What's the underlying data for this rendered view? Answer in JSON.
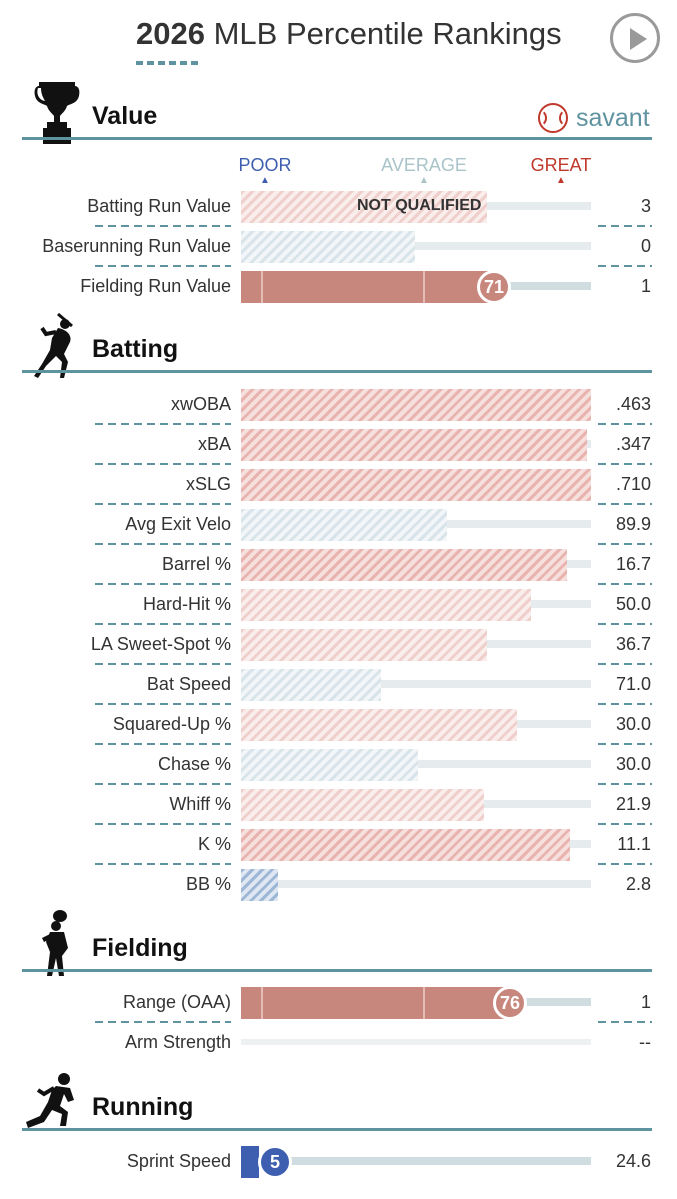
{
  "header": {
    "year": "2026",
    "title": "MLB Percentile Rankings"
  },
  "brand": {
    "name": "savant"
  },
  "colors": {
    "accent": "#5f93a0",
    "poor": "#3e5eb0",
    "average": "#a9c4c9",
    "great": "#c0392b"
  },
  "icons": {
    "play": "play-icon",
    "value": "trophy-icon",
    "batting": "batter-icon",
    "fielding": "fielder-icon",
    "running": "runner-icon",
    "brand": "baseball-icon"
  },
  "legend": {
    "poor": "POOR",
    "average": "AVERAGE",
    "great": "GREAT"
  },
  "sections": {
    "value": {
      "title": "Value",
      "rows": [
        {
          "label": "Batting Run Value",
          "value": "3",
          "percentile": 70,
          "qualified": false,
          "status": "NOT QUALIFIED"
        },
        {
          "label": "Baserunning Run Value",
          "value": "0",
          "percentile": 50,
          "qualified": false
        },
        {
          "label": "Fielding Run Value",
          "value": "1",
          "percentile": 71,
          "qualified": true
        }
      ]
    },
    "batting": {
      "title": "Batting",
      "rows": [
        {
          "label": "xwOBA",
          "value": ".463",
          "percentile": 100
        },
        {
          "label": "xBA",
          "value": ".347",
          "percentile": 99
        },
        {
          "label": "xSLG",
          "value": ".710",
          "percentile": 100
        },
        {
          "label": "Avg Exit Velo",
          "value": "89.9",
          "percentile": 59
        },
        {
          "label": "Barrel %",
          "value": "16.7",
          "percentile": 93
        },
        {
          "label": "Hard-Hit %",
          "value": "50.0",
          "percentile": 83
        },
        {
          "label": "LA Sweet-Spot %",
          "value": "36.7",
          "percentile": 71
        },
        {
          "label": "Bat Speed",
          "value": "71.0",
          "percentile": 40
        },
        {
          "label": "Squared-Up %",
          "value": "30.0",
          "percentile": 79
        },
        {
          "label": "Chase %",
          "value": "30.0",
          "percentile": 51
        },
        {
          "label": "Whiff %",
          "value": "21.9",
          "percentile": 70
        },
        {
          "label": "K %",
          "value": "11.1",
          "percentile": 94
        },
        {
          "label": "BB %",
          "value": "2.8",
          "percentile": 11
        }
      ]
    },
    "fielding": {
      "title": "Fielding",
      "rows": [
        {
          "label": "Range (OAA)",
          "value": "1",
          "percentile": 76,
          "qualified": true
        },
        {
          "label": "Arm Strength",
          "value": "--"
        }
      ]
    },
    "running": {
      "title": "Running",
      "rows": [
        {
          "label": "Sprint Speed",
          "value": "24.6",
          "percentile": 5,
          "qualified": true
        }
      ]
    }
  }
}
